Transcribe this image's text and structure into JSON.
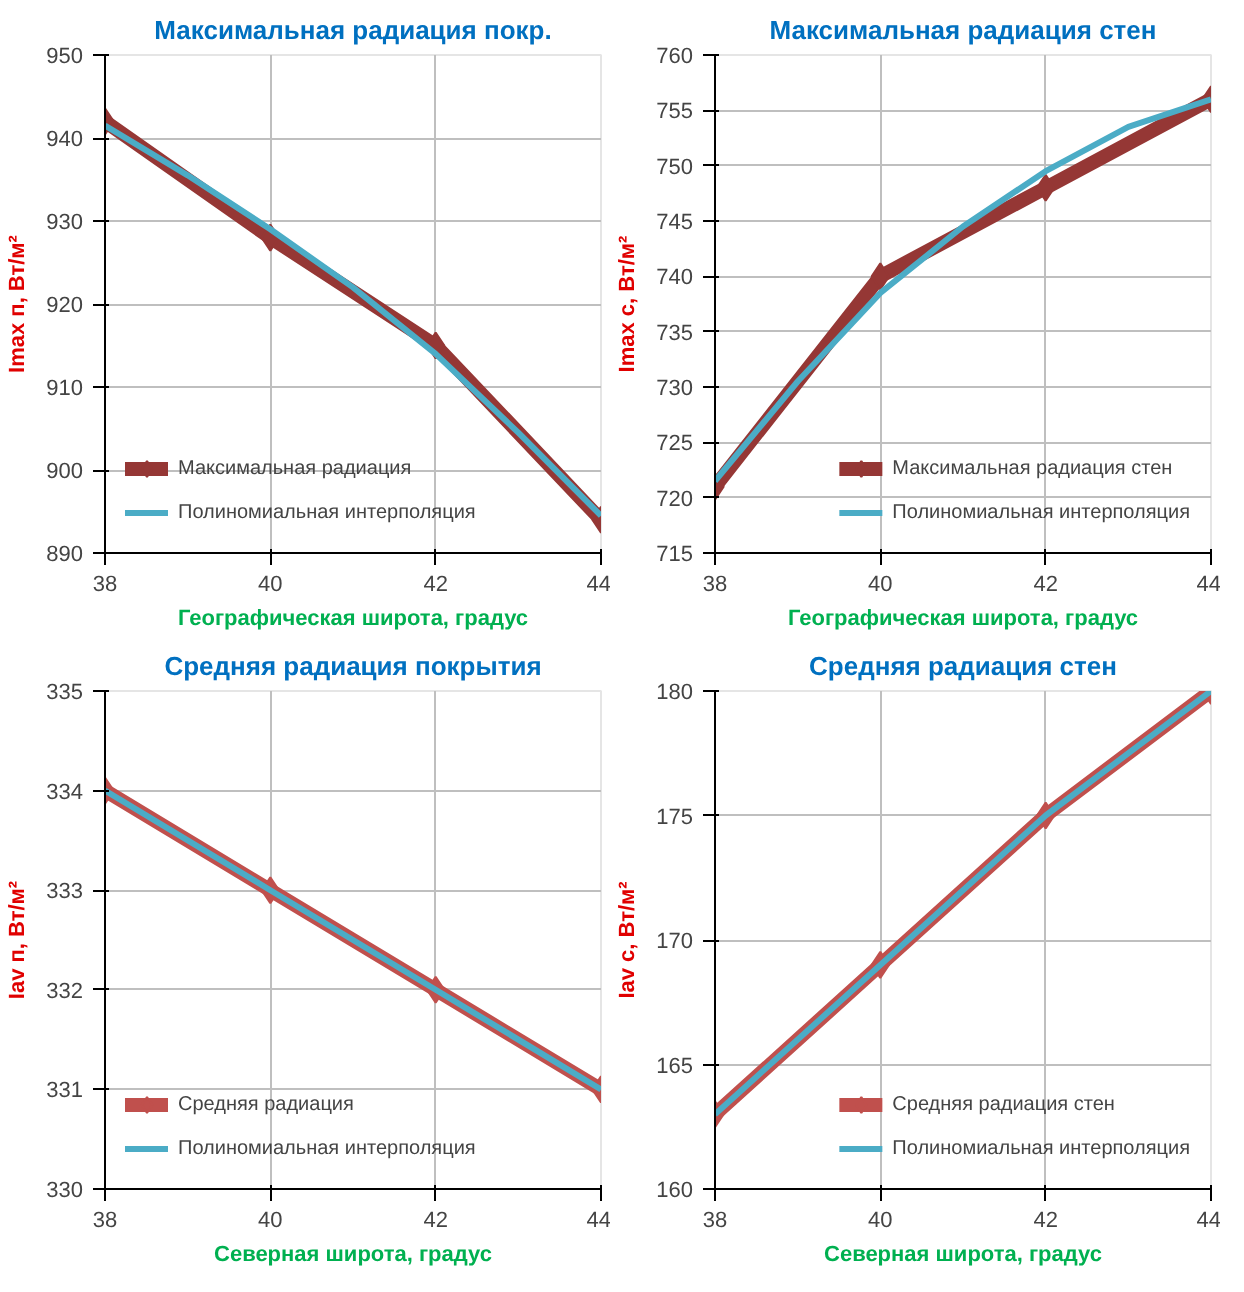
{
  "chart_data": [
    {
      "type": "line",
      "title": "Максимальная радиация покр.",
      "xlabel": "Географическая широта, градус",
      "ylabel": "Imax п, Вт/м²",
      "x": [
        38,
        40,
        42,
        44
      ],
      "xlim": [
        38,
        44
      ],
      "xticks": [
        38,
        40,
        42,
        44
      ],
      "ylim": [
        890,
        950
      ],
      "yticks": [
        890,
        900,
        910,
        920,
        930,
        940,
        950
      ],
      "grid": true,
      "legend": "bottom left",
      "series": [
        {
          "name": "Максимальная радиация",
          "color": "#953735",
          "marker": "diamond",
          "values": [
            942,
            928,
            915,
            894
          ]
        },
        {
          "name": "Полиномиальная интерполяция",
          "color": "#4bacc6",
          "marker": "none",
          "x": [
            38,
            39,
            40,
            41,
            42,
            43,
            44
          ],
          "values": [
            941.5,
            935.5,
            929,
            922,
            914,
            904.5,
            894.5
          ]
        }
      ]
    },
    {
      "type": "line",
      "title": "Максимальная радиация стен",
      "xlabel": "Географическая широта, градус",
      "ylabel": "Imax с, Вт/м²",
      "x": [
        38,
        40,
        42,
        44
      ],
      "xlim": [
        38,
        44
      ],
      "xticks": [
        38,
        40,
        42,
        44
      ],
      "ylim": [
        715,
        760
      ],
      "yticks": [
        715,
        720,
        725,
        730,
        735,
        740,
        745,
        750,
        755,
        760
      ],
      "grid": true,
      "legend": "bottom right",
      "series": [
        {
          "name": "Максимальная радиация стен",
          "color": "#953735",
          "marker": "diamond",
          "values": [
            721,
            740,
            748,
            756
          ]
        },
        {
          "name": "Полиномиальная интерполяция",
          "color": "#4bacc6",
          "marker": "none",
          "x": [
            38,
            39,
            40,
            41,
            42,
            43,
            44
          ],
          "values": [
            721.5,
            730.5,
            738.5,
            744.5,
            749.5,
            753.5,
            756
          ]
        }
      ]
    },
    {
      "type": "line",
      "title": "Средняя радиация покрытия",
      "xlabel": "Северная широта, градус",
      "ylabel": "Iav п, Вт/м²",
      "x": [
        38,
        40,
        42,
        44
      ],
      "xlim": [
        38,
        44
      ],
      "xticks": [
        38,
        40,
        42,
        44
      ],
      "ylim": [
        330,
        335
      ],
      "yticks": [
        330,
        331,
        332,
        333,
        334,
        335
      ],
      "grid": true,
      "legend": "bottom left",
      "series": [
        {
          "name": "Средняя радиация",
          "color": "#c0504d",
          "marker": "diamond",
          "values": [
            334,
            333,
            332,
            331
          ]
        },
        {
          "name": "Полиномиальная интерполяция",
          "color": "#4bacc6",
          "marker": "none",
          "values": [
            334,
            333,
            332,
            331
          ]
        }
      ]
    },
    {
      "type": "line",
      "title": "Средняя радиация стен",
      "xlabel": "Северная широта, градус",
      "ylabel": "Iav с, Вт/м²",
      "x": [
        38,
        40,
        42,
        44
      ],
      "xlim": [
        38,
        44
      ],
      "xticks": [
        38,
        40,
        42,
        44
      ],
      "ylim": [
        160,
        180
      ],
      "yticks": [
        160,
        165,
        170,
        175,
        180
      ],
      "grid": true,
      "legend": "bottom right",
      "series": [
        {
          "name": "Средняя радиация стен",
          "color": "#c0504d",
          "marker": "diamond",
          "values": [
            163,
            169,
            175,
            180
          ]
        },
        {
          "name": "Полиномиальная интерполяция",
          "color": "#4bacc6",
          "marker": "none",
          "values": [
            163,
            169,
            175,
            180
          ]
        }
      ]
    }
  ]
}
